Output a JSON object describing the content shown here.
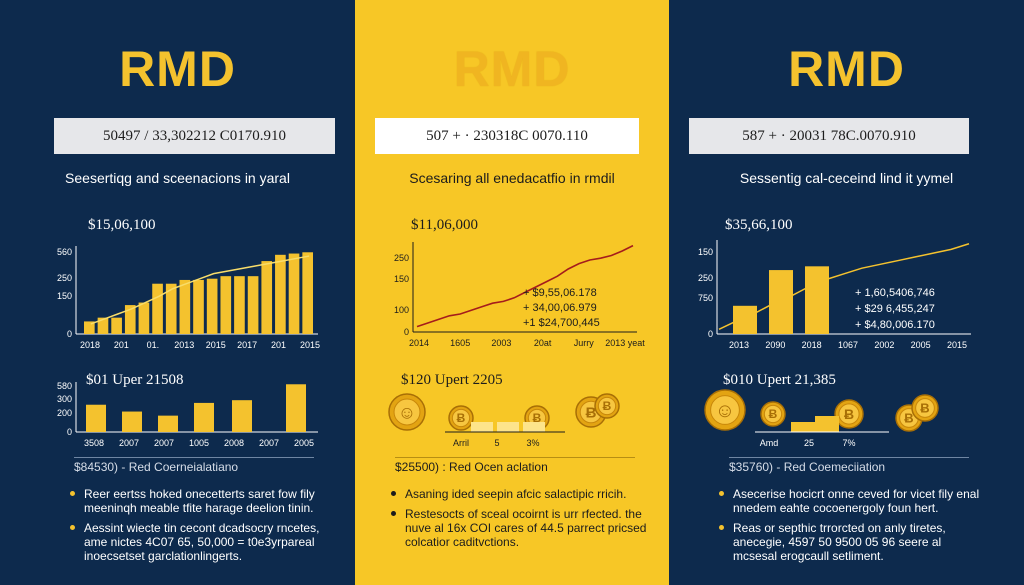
{
  "panels": [
    {
      "brand": "RMD",
      "code": "50497 / 33,302212 C0170.910",
      "subtitle": "Seesertiqg and sceenacions in yaral",
      "headline": "$15,06,100",
      "coins_label": "$01 Uper 21508",
      "result": "$84530) - Red Coerneialatiano",
      "notes": [
        "Reer eertss hoked onecetterts saret fow fily meeninqh meable tfite harage deelion tinin.",
        "Aessint wiecte tin cecont dcadsocry rncetes, ame nictes 4C07 65, 50,000 = t0e3yrpareal inoecsetset garclationlingerts."
      ]
    },
    {
      "brand": "RMD",
      "code": "507 + · 230318C 0070.110",
      "subtitle": "Scesaring all enedacatfio in rmdil",
      "headline": "$11,06,000",
      "coins_label": "$120 Upert 2205",
      "result": "$25500) : Red Ocen aclation",
      "notes": [
        "Asaning ided seepin afcic salactipic rricih.",
        "Restesocts of sceal ocoirnt is urr rfected. the nuve al 16x COI cares of 44.5 parrect pricsed colcatior caditvctions."
      ]
    },
    {
      "brand": "RMD",
      "code": "587 + · 20031 78C.0070.910",
      "subtitle": "Sessentig cal-ceceind lind it yymel",
      "headline": "$35,66,100",
      "coins_label": "$010 Upert 21,385",
      "result": "$35760) - Red Coemeciiation",
      "notes": [
        "Asecerise hocicrt onne ceved for vicet fily enal nnedem eahte cocoenergoly foun hert.",
        "Reas or septhic trrorcted on anly tiretes, anecegie, 4597 50 9500 05 96 seere al mcsesal erogcaull setliment."
      ]
    }
  ],
  "chart_data": [
    {
      "type": "bar",
      "panel": 0,
      "yticks": [
        "560",
        "250",
        "150",
        "0"
      ],
      "xticks": [
        "2018",
        "201",
        "01.",
        "2013",
        "2015",
        "2017",
        "201",
        "2015"
      ],
      "series": [
        {
          "values": [
            10,
            13,
            13,
            23,
            25,
            40,
            40,
            43,
            43,
            44,
            46,
            46,
            46,
            58,
            63,
            64,
            65
          ]
        },
        {
          "values": [
            8,
            12,
            16,
            20,
            25,
            30,
            36,
            40,
            44,
            48,
            50,
            52,
            54,
            56,
            58,
            60,
            62
          ]
        }
      ]
    },
    {
      "type": "line",
      "panel": 1,
      "yticks": [
        "250",
        "150",
        "100",
        "0"
      ],
      "xticks": [
        "2014",
        "1605",
        "2003",
        "20at",
        "Jurry",
        "2013 yeat"
      ],
      "values": [
        6,
        10,
        14,
        18,
        20,
        24,
        28,
        32,
        34,
        38,
        44,
        50,
        56,
        62,
        70,
        76,
        80,
        82,
        85,
        90,
        96
      ],
      "annotations": [
        "+ $9,55,06.178",
        "+ 34,00,06.979",
        "+1 $24,700,445"
      ]
    },
    {
      "type": "bar",
      "panel": 2,
      "yticks": [
        "150",
        "250",
        "750",
        "0"
      ],
      "xticks": [
        "2013",
        "2090",
        "2018",
        "1067",
        "2002",
        "2005",
        "2015"
      ],
      "series": [
        {
          "values": [
            30,
            68,
            72
          ]
        },
        {
          "values": [
            5,
            14,
            22,
            32,
            40,
            50,
            58,
            64,
            70,
            74,
            78,
            82,
            86,
            90,
            96
          ]
        }
      ],
      "annotations": [
        "+ 1,60,5406,746",
        "+ $29 6,455,247",
        "+ $4,80,006.170"
      ]
    },
    {
      "type": "bar",
      "panel": 0,
      "yticks": [
        "580",
        "300",
        "200",
        "0"
      ],
      "xticks": [
        "3508",
        "2007",
        "2007",
        "1005",
        "2008",
        "2007",
        "2005"
      ],
      "values": [
        60,
        45,
        36,
        64,
        70,
        105
      ]
    },
    {
      "type": "bar",
      "panel": 1,
      "xticks": [
        "Arril",
        "5",
        "3%"
      ],
      "values": [
        10,
        10,
        10
      ]
    },
    {
      "type": "bar",
      "panel": 2,
      "xticks": [
        "Amd",
        "25",
        "7%"
      ],
      "values": [
        10,
        10,
        10
      ]
    }
  ],
  "colors": {
    "navy": "#0d2a4d",
    "yellow": "#f7c726",
    "gold": "#f4c22e",
    "red_line": "#a51c1c"
  }
}
